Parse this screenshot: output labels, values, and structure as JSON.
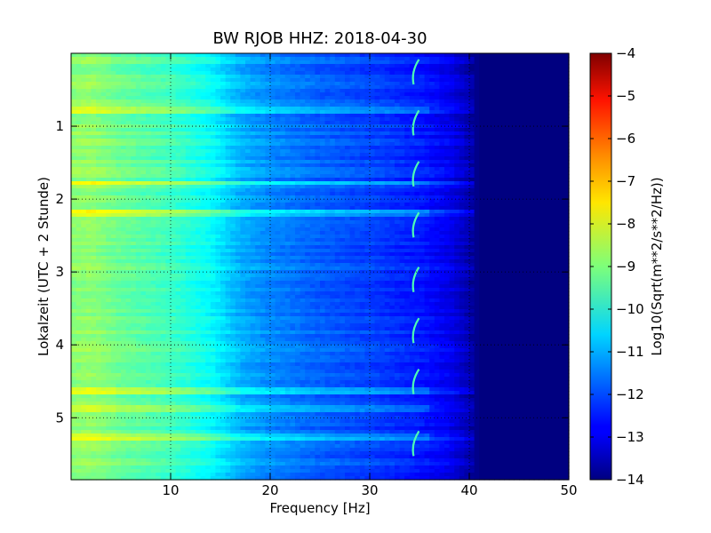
{
  "chart_data": {
    "type": "heatmap",
    "title": "BW RJOB HHZ: 2018-04-30",
    "xlabel": "Frequency [Hz]",
    "ylabel": "Lokalzeit (UTC + 2 Stunde)",
    "colorbar_label": "Log10(Sqrt(m**2/s**2/Hz))",
    "xlim": [
      0,
      50
    ],
    "ylim_top_to_bottom": [
      0,
      5.85
    ],
    "x_ticks": [
      10,
      20,
      30,
      40,
      50
    ],
    "x_tick_labels": [
      "10",
      "20",
      "30",
      "40",
      "50"
    ],
    "y_ticks": [
      1,
      2,
      3,
      4,
      5
    ],
    "y_tick_labels": [
      "1",
      "2",
      "3",
      "4",
      "5"
    ],
    "color_range": [
      -14,
      -4
    ],
    "colorbar_ticks": [
      -4,
      -5,
      -6,
      -7,
      -8,
      -9,
      -10,
      -11,
      -12,
      -13,
      -14
    ],
    "colorbar_tick_labels": [
      "−4",
      "−5",
      "−6",
      "−7",
      "−8",
      "−9",
      "−10",
      "−11",
      "−12",
      "−13",
      "−14"
    ],
    "colormap": "jet",
    "grid": true,
    "base_spectrum": {
      "frequency_hz": [
        0,
        2,
        5,
        10,
        14,
        17,
        20,
        25,
        30,
        35,
        38,
        40,
        41,
        50
      ],
      "log10_value": [
        -8.9,
        -8.8,
        -9.2,
        -9.6,
        -10.2,
        -11.0,
        -11.4,
        -11.8,
        -12.1,
        -12.5,
        -12.9,
        -13.5,
        -14.0,
        -14.0
      ]
    },
    "bright_lines_hours": [
      0.77,
      1.78,
      2.2,
      4.65,
      4.87,
      5.25
    ],
    "tonal_features": {
      "frequency_hz": 34.5,
      "hours": [
        0.45,
        1.15,
        1.85,
        2.55,
        3.3,
        4.0,
        4.7,
        5.55
      ]
    }
  }
}
